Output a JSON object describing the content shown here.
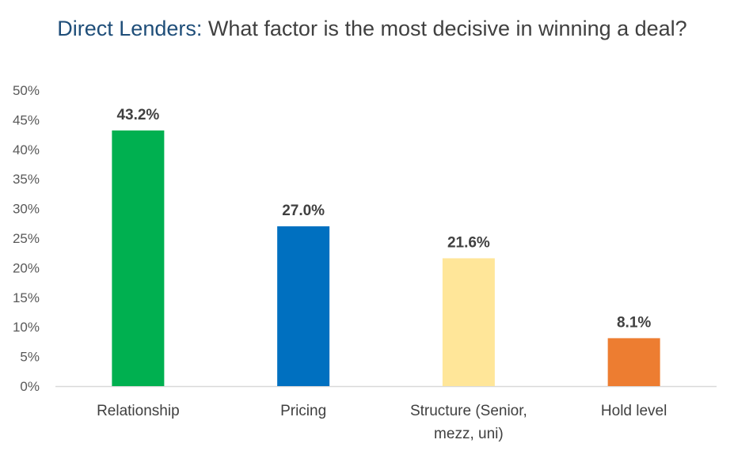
{
  "chart_data": {
    "type": "bar",
    "title_prefix": "Direct Lenders:",
    "title": "What factor is the most decisive in winning a deal?",
    "categories": [
      "Relationship",
      "Pricing",
      "Structure (Senior, mezz, uni)",
      "Hold level"
    ],
    "category_lines": [
      [
        "Relationship"
      ],
      [
        "Pricing"
      ],
      [
        "Structure (Senior,",
        "mezz, uni)"
      ],
      [
        "Hold level"
      ]
    ],
    "values": [
      43.2,
      27.0,
      21.6,
      8.1
    ],
    "data_labels": [
      "43.2%",
      "27.0%",
      "21.6%",
      "8.1%"
    ],
    "colors": [
      "#00b050",
      "#0070c0",
      "#ffe699",
      "#ed7d31"
    ],
    "ylim": [
      0,
      50
    ],
    "yticks": [
      0,
      5,
      10,
      15,
      20,
      25,
      30,
      35,
      40,
      45,
      50
    ],
    "ytick_labels": [
      "0%",
      "5%",
      "10%",
      "15%",
      "20%",
      "25%",
      "30%",
      "35%",
      "40%",
      "45%",
      "50%"
    ],
    "xlabel": "",
    "ylabel": "",
    "grid": false,
    "legend": "none"
  }
}
